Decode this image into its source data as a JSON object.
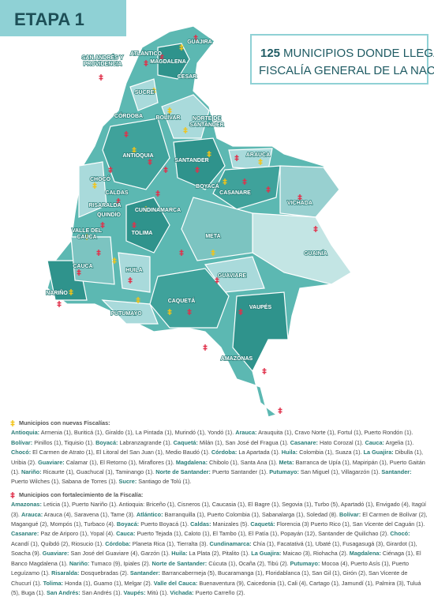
{
  "header": {
    "title": "ETAPA 1"
  },
  "headline": {
    "number": "125",
    "lines": [
      "MUNICIPIOS DONDE LLEGA LA",
      "FISCALÍA GENERAL DE LA NACIÓN"
    ]
  },
  "map": {
    "labels": [
      {
        "lines": [
          "GUAJIRA"
        ]
      },
      {
        "lines": [
          "ATLÁNTICO"
        ]
      },
      {
        "lines": [
          "MAGDALENA"
        ]
      },
      {
        "lines": [
          "CESAR"
        ]
      },
      {
        "lines": [
          "SAN ANDRÉS Y",
          "PROVIDENCIA"
        ]
      },
      {
        "lines": [
          "SUCRE"
        ]
      },
      {
        "lines": [
          "CÓRDOBA"
        ]
      },
      {
        "lines": [
          "BOLÍVAR"
        ]
      },
      {
        "lines": [
          "NORTE DE",
          "SANTANDER"
        ]
      },
      {
        "lines": [
          "ARAUCA"
        ]
      },
      {
        "lines": [
          "ANTIOQUIA"
        ]
      },
      {
        "lines": [
          "SANTANDER"
        ]
      },
      {
        "lines": [
          "CHOCÓ"
        ]
      },
      {
        "lines": [
          "BOYACÁ"
        ]
      },
      {
        "lines": [
          "CASANARE"
        ]
      },
      {
        "lines": [
          "CALDAS"
        ]
      },
      {
        "lines": [
          "RISARALDA"
        ]
      },
      {
        "lines": [
          "CUNDINAMARCA"
        ]
      },
      {
        "lines": [
          "VICHADA"
        ]
      },
      {
        "lines": [
          "QUINDÍO"
        ]
      },
      {
        "lines": [
          "TOLIMA"
        ]
      },
      {
        "lines": [
          "VALLE DEL",
          "CAUCA"
        ]
      },
      {
        "lines": [
          "META"
        ]
      },
      {
        "lines": [
          "GUAINÍA"
        ]
      },
      {
        "lines": [
          "CAUCA"
        ]
      },
      {
        "lines": [
          "HUILA"
        ]
      },
      {
        "lines": [
          "GUAVIARE"
        ]
      },
      {
        "lines": [
          "NARIÑO"
        ]
      },
      {
        "lines": [
          "CAQUETÁ"
        ]
      },
      {
        "lines": [
          "PUTUMAYO"
        ]
      },
      {
        "lines": [
          "VAUPÉS"
        ]
      },
      {
        "lines": [
          "AMAZONAS"
        ]
      }
    ]
  },
  "legend": {
    "sections": [
      {
        "title": "Municipios con nuevas Fiscalías:",
        "entries": [
          {
            "department": "Antioquia:",
            "text": "Armenia (1), Buriticá (1), Giraldo (1), La Pintada (1), Murindó (1), Yondó (1)."
          },
          {
            "department": "Arauca:",
            "text": "Arauquita (1), Cravo Norte (1), Fortul (1), Puerto Rondón (1)."
          },
          {
            "department": "Bolívar:",
            "text": "Pinillos (1), Tiquisio (1)."
          },
          {
            "department": "Boyacá:",
            "text": "Labranzagrande (1)."
          },
          {
            "department": "Caquetá:",
            "text": "Milán (1), San José del Fragua (1)."
          },
          {
            "department": "Casanare:",
            "text": "Hato Corozal (1)."
          },
          {
            "department": "Cauca:",
            "text": "Argelia (1)."
          },
          {
            "department": "Chocó:",
            "text": "El Carmen de Atrato (1), El Litoral del San Juan (1), Medio Baudó (1)."
          },
          {
            "department": "Córdoba:",
            "text": "La Apartada (1)."
          },
          {
            "department": "Huila:",
            "text": "Colombia (1), Suaza (1)."
          },
          {
            "department": "La Guajira:",
            "text": "Dibulla (1), Uribia (2)."
          },
          {
            "department": "Guaviare:",
            "text": "Calamar (1), El Retorno (1), Miraflores (1)."
          },
          {
            "department": "Magdalena:",
            "text": "Chibolo (1), Santa Ana (1)."
          },
          {
            "department": "Meta:",
            "text": "Barranca de Upía (1), Mapiripán (1), Puerto Gaitán (1)."
          },
          {
            "department": "Nariño:",
            "text": "Ricaurte (1), Guachucal (1), Taminango (1)."
          },
          {
            "department": "Norte de Santander:",
            "text": "Puerto Santander (1)."
          },
          {
            "department": "Putumayo:",
            "text": "San Miguel (1), Villagarzón (1)."
          },
          {
            "department": "Santander:",
            "text": "Puerto Wilches (1), Sabana de Torres (1)."
          },
          {
            "department": "Sucre:",
            "text": "Santiago de Tolú (1)."
          }
        ]
      },
      {
        "title": "Municipios con fortalecimiento de la Fiscalía:",
        "entries": [
          {
            "department": "Amazonas:",
            "text": "Leticia (1), Puerto Nariño (1). Antioquia: Briceño (1), Cisneros (1), Caucasia (1), El Bagre (1), Segovia (1), Turbo (5), Apartadó (1), Envigado (4), Itagüí (3)."
          },
          {
            "department": "Arauca:",
            "text": "Arauca (4), Saravena (1), Tame (3)."
          },
          {
            "department": "Atlántico:",
            "text": "Barranquilla (1), Puerto Colombia (1), Sabanalarga (1), Soledad (8)."
          },
          {
            "department": "Bolívar:",
            "text": "El Carmen de Bolívar (2), Magangué (2), Mompós (1), Turbaco (4)."
          },
          {
            "department": "Boyacá:",
            "text": "Puerto Boyacá (1)."
          },
          {
            "department": "Caldas:",
            "text": "Manizales (5)."
          },
          {
            "department": "Caquetá:",
            "text": "Florencia (3) Puerto Rico (1), San Vicente del Caguán (1)."
          },
          {
            "department": "Casanare:",
            "text": "Paz de Ariporo (1), Yopal (4)."
          },
          {
            "department": "Cauca:",
            "text": "Puerto Tejada (1), Caloto (1), El Tambo (1), El Patía (1), Popayán (12), Santander de Quilichao (2)."
          },
          {
            "department": "Chocó:",
            "text": "Acandí (1), Quibdó (2), Riosucio (1)."
          },
          {
            "department": "Córdoba:",
            "text": "Planeta Rica (1), Tierralta (3)."
          },
          {
            "department": "Cundinamarca:",
            "text": "Chía (1), Facatativá (1), Ubaté (1), Fusagasugá (3), Girardot (1), Soacha (9)."
          },
          {
            "department": "Guaviare:",
            "text": "San José del Guaviare (4), Garzón (1)."
          },
          {
            "department": "Huila:",
            "text": "La Plata (2), Pitalito (1)."
          },
          {
            "department": "La Guajira:",
            "text": "Maicao (3), Riohacha (2)."
          },
          {
            "department": "Magdalena:",
            "text": "Ciénaga (1), El Banco Magdalena (1)."
          },
          {
            "department": "Nariño:",
            "text": "Tumaco (9), Ipiales (2)."
          },
          {
            "department": "Norte de Santander:",
            "text": "Cúcuta (1), Ocaña (2), Tibú (2)."
          },
          {
            "department": "Putumayo:",
            "text": "Mocoa (4), Puerto Asís (1), Puerto Leguízamo (1)."
          },
          {
            "department": "Risaralda:",
            "text": "Dosquebradas (2)."
          },
          {
            "department": "Santander:",
            "text": "Barrancabermeja (5), Bucaramanga (1), Floridablanca (1), San Gil (1), Girón (2), San Vicente de Chucurí (1)."
          },
          {
            "department": "Tolima:",
            "text": "Honda (1), Guamo (1), Melgar (2)."
          },
          {
            "department": "Valle del Cauca:",
            "text": "Buenaventura (9), Caicedonia (1), Cali (4), Cartago (1), Jamundí (1), Palmira (3), Tuluá (5), Buga (1)."
          },
          {
            "department": "San Andrés:",
            "text": "San Andrés (1)."
          },
          {
            "department": "Vaupés:",
            "text": "Mitú (1)."
          },
          {
            "department": "Vichada:",
            "text": "Puerto Carreño (2)."
          }
        ]
      }
    ]
  }
}
